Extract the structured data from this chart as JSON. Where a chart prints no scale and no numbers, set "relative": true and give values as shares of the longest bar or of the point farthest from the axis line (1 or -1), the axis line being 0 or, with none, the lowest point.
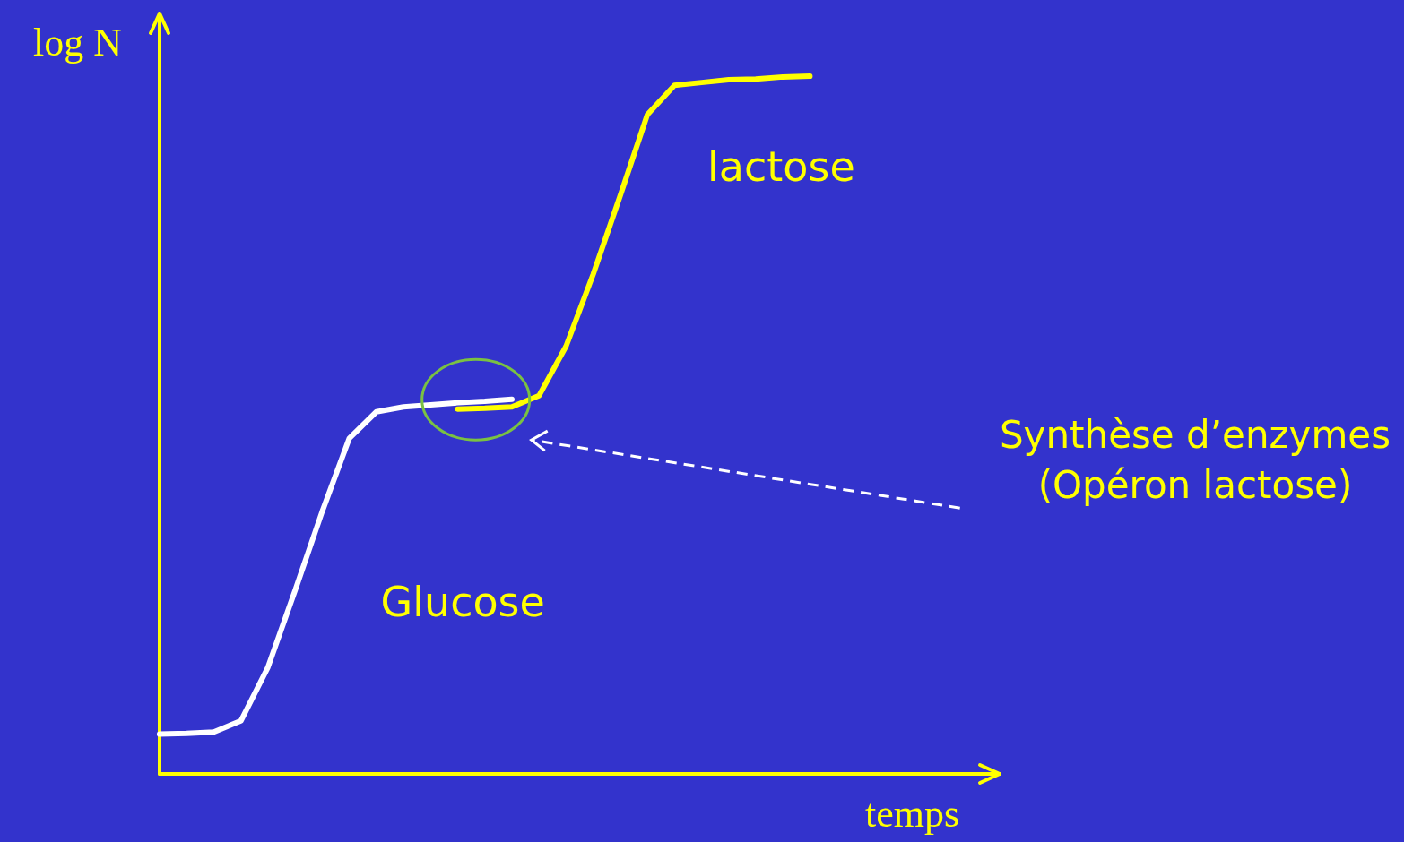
{
  "chart_data": {
    "type": "line",
    "relative": true,
    "xlabel": "temps",
    "ylabel": "log N",
    "marker": "none",
    "categories": [
      null,
      null,
      null,
      null,
      null,
      null,
      null,
      null,
      null,
      null,
      null,
      null,
      null,
      null,
      null,
      null,
      null,
      null,
      null,
      null,
      null,
      null,
      null,
      null,
      null,
      null,
      null,
      null,
      null,
      null,
      null,
      null
    ],
    "series": [
      {
        "name": "Glucose",
        "color": "#ffffff",
        "values": [
          0.057,
          0.058,
          0.06,
          0.076,
          0.153,
          0.263,
          0.376,
          0.481,
          0.519,
          0.526,
          0.529,
          0.532,
          0.534,
          0.537,
          null,
          null,
          null,
          null,
          null,
          null,
          null,
          null,
          null,
          null,
          null,
          null,
          null,
          null,
          null,
          null,
          null,
          null
        ]
      },
      {
        "name": "lactose",
        "color": "#ffff00",
        "values": [
          null,
          null,
          null,
          null,
          null,
          null,
          null,
          null,
          null,
          null,
          null,
          0.523,
          0.524,
          0.526,
          0.542,
          0.613,
          0.716,
          0.829,
          0.945,
          0.987,
          0.991,
          0.995,
          0.996,
          0.999,
          1,
          null,
          null,
          null,
          null,
          null,
          null,
          null
        ]
      }
    ],
    "annotations": [
      "Synthèse d’enzymes\n(Opéron lactose)"
    ]
  }
}
